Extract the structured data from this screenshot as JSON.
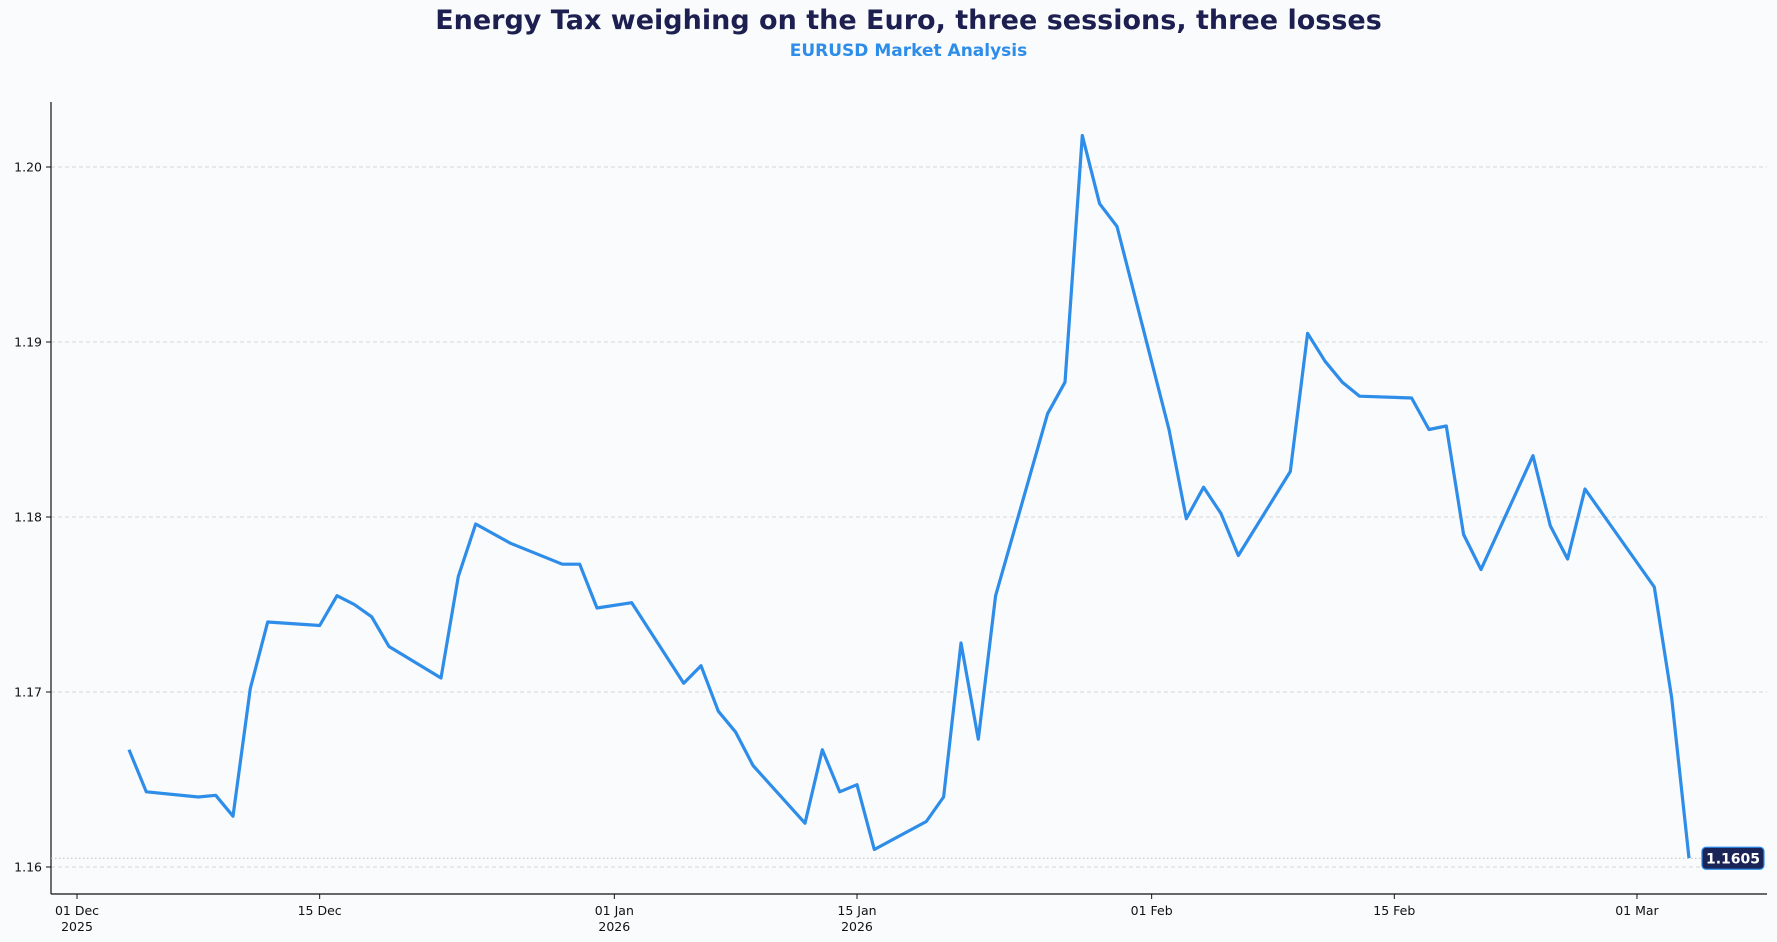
{
  "chart_data": {
    "type": "line",
    "title": "Energy Tax weighing on the Euro, three sessions, three losses",
    "subtitle": "EURUSD Market Analysis",
    "xlabel": "",
    "ylabel": "",
    "ylim": [
      1.1585,
      1.2045
    ],
    "xlim": [
      "2025-11-30",
      "2026-03-09"
    ],
    "grid": "horizontal dashed",
    "line_color": "#2e8de8",
    "y_ticks": [
      "1.16",
      "1.17",
      "1.18",
      "1.19",
      "1.20"
    ],
    "x_ticks": [
      {
        "date": "2025-12-01",
        "label": "01 Dec",
        "sub": "2025"
      },
      {
        "date": "2025-12-15",
        "label": "15 Dec",
        "sub": ""
      },
      {
        "date": "2026-01-01",
        "label": "01 Jan",
        "sub": "2026"
      },
      {
        "date": "2026-01-15",
        "label": "15 Jan",
        "sub": "2026"
      },
      {
        "date": "2026-02-01",
        "label": "01 Feb",
        "sub": ""
      },
      {
        "date": "2026-02-15",
        "label": "15 Feb",
        "sub": ""
      },
      {
        "date": "2026-03-01",
        "label": "01 Mar",
        "sub": ""
      }
    ],
    "last_value_label": "1.1605",
    "last_value_label_color": "#1a2456",
    "x": [
      "2025-12-04",
      "2025-12-05",
      "2025-12-08",
      "2025-12-09",
      "2025-12-10",
      "2025-12-11",
      "2025-12-12",
      "2025-12-15",
      "2025-12-16",
      "2025-12-17",
      "2025-12-18",
      "2025-12-19",
      "2025-12-22",
      "2025-12-23",
      "2025-12-24",
      "2025-12-26",
      "2025-12-29",
      "2025-12-30",
      "2025-12-31",
      "2026-01-02",
      "2026-01-05",
      "2026-01-06",
      "2026-01-07",
      "2026-01-08",
      "2026-01-09",
      "2026-01-12",
      "2026-01-13",
      "2026-01-14",
      "2026-01-15",
      "2026-01-16",
      "2026-01-19",
      "2026-01-20",
      "2026-01-21",
      "2026-01-22",
      "2026-01-23",
      "2026-01-26",
      "2026-01-27",
      "2026-01-28",
      "2026-01-29",
      "2026-01-30",
      "2026-02-02",
      "2026-02-03",
      "2026-02-04",
      "2026-02-05",
      "2026-02-06",
      "2026-02-09",
      "2026-02-10",
      "2026-02-11",
      "2026-02-12",
      "2026-02-13",
      "2026-02-16",
      "2026-02-17",
      "2026-02-18",
      "2026-02-19",
      "2026-02-20",
      "2026-02-23",
      "2026-02-24",
      "2026-02-25",
      "2026-02-26",
      "2026-02-27",
      "2026-03-02",
      "2026-03-03",
      "2026-03-04"
    ],
    "series": [
      {
        "values": [
          1.1667,
          1.1643,
          1.164,
          1.1641,
          1.1629,
          1.1702,
          1.174,
          1.1738,
          1.1755,
          1.175,
          1.1743,
          1.1726,
          1.1708,
          1.1766,
          1.1796,
          1.1785,
          1.1773,
          1.1773,
          1.1748,
          1.1751,
          1.1705,
          1.1715,
          1.1689,
          1.1677,
          1.1658,
          1.1625,
          1.1667,
          1.1643,
          1.1647,
          1.161,
          1.1626,
          1.164,
          1.1728,
          1.1673,
          1.1755,
          1.1859,
          1.1877,
          1.2018,
          1.1979,
          1.1966,
          1.185,
          1.1799,
          1.1817,
          1.1802,
          1.1778,
          1.1826,
          1.1905,
          1.1889,
          1.1877,
          1.1869,
          1.1868,
          1.185,
          1.1852,
          1.179,
          1.177,
          1.1835,
          1.1795,
          1.1776,
          1.1816,
          1.1802,
          1.176,
          1.1697,
          1.1605
        ]
      }
    ]
  }
}
